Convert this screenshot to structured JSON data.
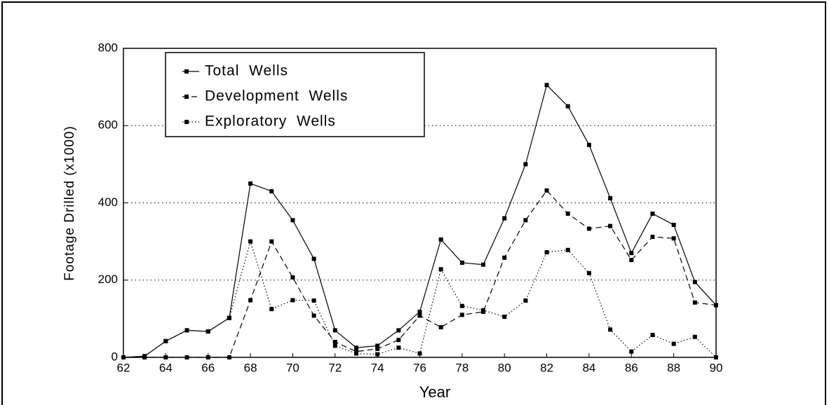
{
  "chart_data": {
    "type": "line",
    "x_label": "Year",
    "y_label": "Footage Drilled (x1000)",
    "x": [
      62,
      63,
      64,
      65,
      66,
      67,
      68,
      69,
      70,
      71,
      72,
      73,
      74,
      75,
      76,
      77,
      78,
      79,
      80,
      81,
      82,
      83,
      84,
      85,
      86,
      87,
      88,
      89,
      90
    ],
    "series": [
      {
        "name": "Total  Wells",
        "color": "#000000",
        "line_style": "solid",
        "values": [
          0,
          3,
          42,
          70,
          67,
          102,
          450,
          430,
          355,
          255,
          70,
          25,
          30,
          70,
          118,
          305,
          245,
          240,
          360,
          500,
          705,
          650,
          550,
          412,
          270,
          372,
          343,
          195,
          135
        ]
      },
      {
        "name": "Development  Wells",
        "color": "#000000",
        "line_style": "dashed",
        "values": [
          0,
          0,
          0,
          0,
          0,
          0,
          148,
          300,
          207,
          108,
          40,
          15,
          22,
          45,
          108,
          78,
          110,
          118,
          258,
          355,
          432,
          372,
          333,
          340,
          252,
          312,
          308,
          142,
          135
        ]
      },
      {
        "name": "Exploratory  Wells",
        "color": "#000000",
        "line_style": "dotted",
        "values": [
          0,
          3,
          42,
          70,
          67,
          102,
          300,
          125,
          148,
          147,
          30,
          10,
          8,
          25,
          10,
          228,
          133,
          122,
          105,
          147,
          272,
          278,
          218,
          72,
          15,
          58,
          35,
          53,
          0
        ]
      }
    ],
    "xlim": [
      62,
      90
    ],
    "xticks": [
      62,
      64,
      66,
      68,
      70,
      72,
      74,
      76,
      78,
      80,
      82,
      84,
      86,
      88,
      90
    ],
    "ylim": [
      0,
      800
    ],
    "yticks": [
      0,
      200,
      400,
      600,
      800
    ],
    "grid": true,
    "legend_position": "upper-left"
  }
}
